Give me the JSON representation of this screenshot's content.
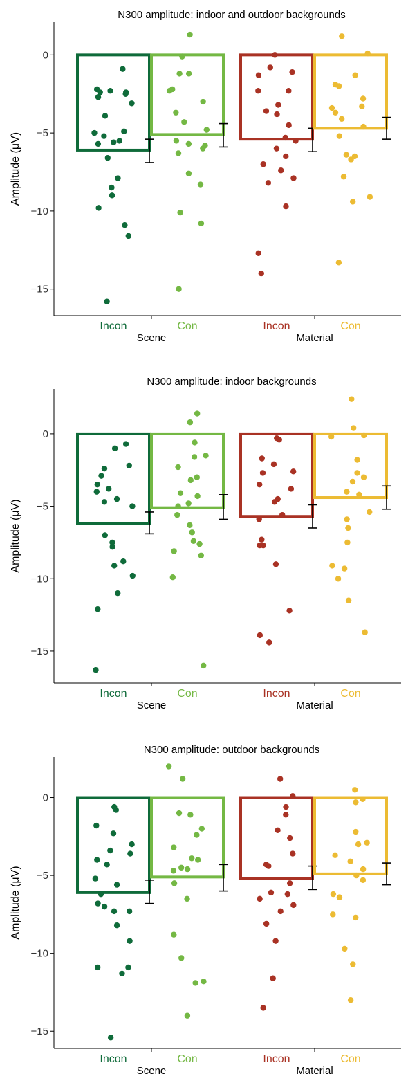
{
  "chart_data": [
    {
      "type": "bar",
      "title": "N300 amplitude: indoor and outdoor backgrounds",
      "ylabel": "Amplitude (μV)",
      "ylim": [
        -16.7,
        2.1
      ],
      "yticks": [
        0,
        -5,
        -10,
        -15
      ],
      "yticklabels": [
        "0",
        "−5",
        "−10",
        "−15"
      ],
      "groups": [
        "Scene",
        "Material"
      ],
      "categories": [
        "Incon",
        "Con",
        "Incon",
        "Con"
      ],
      "colors": [
        "#0f6b3a",
        "#74b844",
        "#a93224",
        "#ecbb33"
      ],
      "bar_values": [
        -6.1,
        -5.1,
        -5.4,
        -4.7
      ],
      "error_low": [
        -6.9,
        -5.9,
        -6.2,
        -5.4
      ],
      "error_high": [
        -5.4,
        -4.4,
        -4.7,
        -4.0
      ],
      "points": [
        [
          -0.9,
          -2.2,
          -2.3,
          -2.4,
          -2.4,
          -2.5,
          -2.7,
          -3.1,
          -3.9,
          -4.9,
          -5.0,
          -5.2,
          -5.5,
          -5.6,
          -5.7,
          -6.6,
          -7.9,
          -8.5,
          -9.0,
          -9.8,
          -10.9,
          -11.6,
          -15.8
        ],
        [
          1.3,
          -0.1,
          -1.2,
          -1.2,
          -2.2,
          -2.3,
          -3.0,
          -3.7,
          -4.3,
          -4.8,
          -5.5,
          -5.7,
          -5.8,
          -6.0,
          -6.3,
          -7.6,
          -8.3,
          -10.1,
          -10.8,
          -15.0
        ],
        [
          0.0,
          -0.8,
          -1.1,
          -1.3,
          -2.3,
          -2.3,
          -3.2,
          -3.6,
          -3.8,
          -4.5,
          -5.3,
          -5.5,
          -6.0,
          -6.5,
          -7.0,
          -7.4,
          -7.9,
          -8.2,
          -9.7,
          -12.7,
          -14.0
        ],
        [
          1.2,
          0.1,
          -1.3,
          -1.9,
          -2.0,
          -2.8,
          -3.3,
          -3.4,
          -3.7,
          -4.1,
          -4.6,
          -5.2,
          -6.4,
          -6.5,
          -6.7,
          -7.8,
          -9.1,
          -9.4,
          -13.3
        ]
      ]
    },
    {
      "type": "bar",
      "title": "N300 amplitude: indoor backgrounds",
      "ylabel": "Amplitude (μV)",
      "ylim": [
        -17.2,
        3.1
      ],
      "yticks": [
        0,
        -5,
        -10,
        -15
      ],
      "yticklabels": [
        "0",
        "−5",
        "−10",
        "−15"
      ],
      "groups": [
        "Scene",
        "Material"
      ],
      "categories": [
        "Incon",
        "Con",
        "Incon",
        "Con"
      ],
      "colors": [
        "#0f6b3a",
        "#74b844",
        "#a93224",
        "#ecbb33"
      ],
      "bar_values": [
        -6.2,
        -5.1,
        -5.7,
        -4.4
      ],
      "error_low": [
        -6.9,
        -5.9,
        -6.5,
        -5.2
      ],
      "error_high": [
        -5.4,
        -4.2,
        -4.9,
        -3.6
      ],
      "points": [
        [
          -0.7,
          -1.0,
          -2.2,
          -2.4,
          -2.9,
          -3.5,
          -3.8,
          -4.0,
          -4.5,
          -4.7,
          -5.0,
          -7.0,
          -7.5,
          -7.8,
          -8.8,
          -9.1,
          -9.8,
          -11.0,
          -12.1,
          -16.3
        ],
        [
          1.4,
          0.8,
          -0.6,
          -1.5,
          -1.6,
          -2.3,
          -3.0,
          -3.2,
          -4.1,
          -4.3,
          -4.8,
          -5.0,
          -5.6,
          -6.3,
          -6.8,
          -7.4,
          -7.6,
          -8.1,
          -8.4,
          -9.9,
          -16.0
        ],
        [
          -0.3,
          -0.4,
          -1.7,
          -2.1,
          -2.6,
          -2.7,
          -3.5,
          -3.8,
          -4.5,
          -4.7,
          -5.6,
          -5.9,
          -7.3,
          -7.7,
          -7.7,
          -9.0,
          -12.2,
          -13.9,
          -14.4
        ],
        [
          2.4,
          0.4,
          -0.1,
          -0.2,
          -1.8,
          -2.7,
          -3.0,
          -3.3,
          -4.0,
          -4.2,
          -5.4,
          -5.9,
          -6.5,
          -7.5,
          -9.1,
          -9.3,
          -10.0,
          -11.5,
          -13.7
        ]
      ]
    },
    {
      "type": "bar",
      "title": "N300 amplitude: outdoor backgrounds",
      "ylabel": "Amplitude (μV)",
      "ylim": [
        -16.1,
        2.6
      ],
      "yticks": [
        0,
        -5,
        -10,
        -15
      ],
      "yticklabels": [
        "0",
        "−5",
        "−10",
        "−15"
      ],
      "groups": [
        "Scene",
        "Material"
      ],
      "categories": [
        "Incon",
        "Con",
        "Incon",
        "Con"
      ],
      "colors": [
        "#0f6b3a",
        "#74b844",
        "#a93224",
        "#ecbb33"
      ],
      "bar_values": [
        -6.1,
        -5.1,
        -5.2,
        -4.9
      ],
      "error_low": [
        -6.8,
        -6.0,
        -5.9,
        -5.6
      ],
      "error_high": [
        -5.3,
        -4.3,
        -4.4,
        -4.2
      ],
      "points": [
        [
          -0.6,
          -0.8,
          -1.8,
          -2.3,
          -3.0,
          -3.4,
          -3.6,
          -4.0,
          -4.3,
          -5.2,
          -5.6,
          -6.2,
          -6.8,
          -7.0,
          -7.3,
          -7.3,
          -8.2,
          -9.2,
          -10.9,
          -10.9,
          -11.3,
          -15.4
        ],
        [
          2.0,
          1.2,
          -1.0,
          -1.1,
          -2.0,
          -2.4,
          -3.2,
          -3.9,
          -4.0,
          -4.5,
          -4.6,
          -4.7,
          -5.5,
          -6.5,
          -8.8,
          -10.3,
          -11.8,
          -11.9,
          -14.0
        ],
        [
          1.2,
          0.1,
          -0.6,
          -1.1,
          -2.1,
          -2.6,
          -3.6,
          -4.3,
          -4.4,
          -5.5,
          -6.1,
          -6.2,
          -6.5,
          -6.9,
          -7.3,
          -8.1,
          -9.2,
          -11.6,
          -13.5
        ],
        [
          0.5,
          -0.1,
          -0.3,
          -2.2,
          -2.9,
          -3.0,
          -3.7,
          -4.1,
          -4.6,
          -5.0,
          -5.3,
          -6.2,
          -6.4,
          -7.5,
          -7.7,
          -9.7,
          -10.7,
          -13.0
        ]
      ]
    }
  ]
}
